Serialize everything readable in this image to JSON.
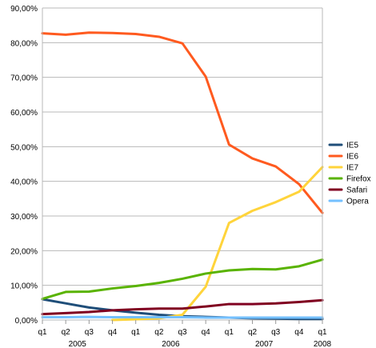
{
  "chart_data": {
    "type": "line",
    "categories": [
      "q1",
      "q2",
      "q3",
      "q4",
      "q1",
      "q2",
      "q3",
      "q4",
      "q1",
      "q2",
      "q3",
      "q4",
      "q1"
    ],
    "year_labels": [
      "2005",
      "2006",
      "2007",
      "2008"
    ],
    "ylim": [
      0,
      90
    ],
    "yticks": [
      "0,00%",
      "10,00%",
      "20,00%",
      "30,00%",
      "40,00%",
      "50,00%",
      "60,00%",
      "70,00%",
      "80,00%",
      "90,00%"
    ],
    "grid": true,
    "legend_position": "right",
    "series": [
      {
        "name": "IE5",
        "color": "#1f4e79",
        "values": [
          6.0,
          4.8,
          3.6,
          2.8,
          2.1,
          1.5,
          1.1,
          0.9,
          0.7,
          0.5,
          0.4,
          0.3,
          0.3
        ]
      },
      {
        "name": "IE6",
        "color": "#ff5a1f",
        "values": [
          82.7,
          82.3,
          82.9,
          82.8,
          82.5,
          81.7,
          79.8,
          70.2,
          50.6,
          46.6,
          44.3,
          39.2,
          30.9
        ]
      },
      {
        "name": "IE7",
        "color": "#ffd43b",
        "values": [
          null,
          null,
          null,
          0.0,
          0.2,
          0.5,
          1.5,
          9.6,
          28.0,
          31.5,
          34.0,
          37.0,
          44.1
        ]
      },
      {
        "name": "Firefox",
        "color": "#59b300",
        "values": [
          6.1,
          8.1,
          8.2,
          9.1,
          9.8,
          10.7,
          11.9,
          13.4,
          14.3,
          14.7,
          14.6,
          15.5,
          17.4
        ]
      },
      {
        "name": "Safari",
        "color": "#800020",
        "values": [
          1.7,
          2.0,
          2.3,
          2.8,
          3.1,
          3.3,
          3.3,
          3.9,
          4.6,
          4.6,
          4.8,
          5.2,
          5.7
        ]
      },
      {
        "name": "Opera",
        "color": "#74c0ff",
        "values": [
          0.8,
          0.8,
          0.9,
          0.8,
          0.8,
          0.8,
          0.8,
          0.7,
          0.7,
          0.7,
          0.7,
          0.7,
          0.7
        ]
      }
    ]
  }
}
